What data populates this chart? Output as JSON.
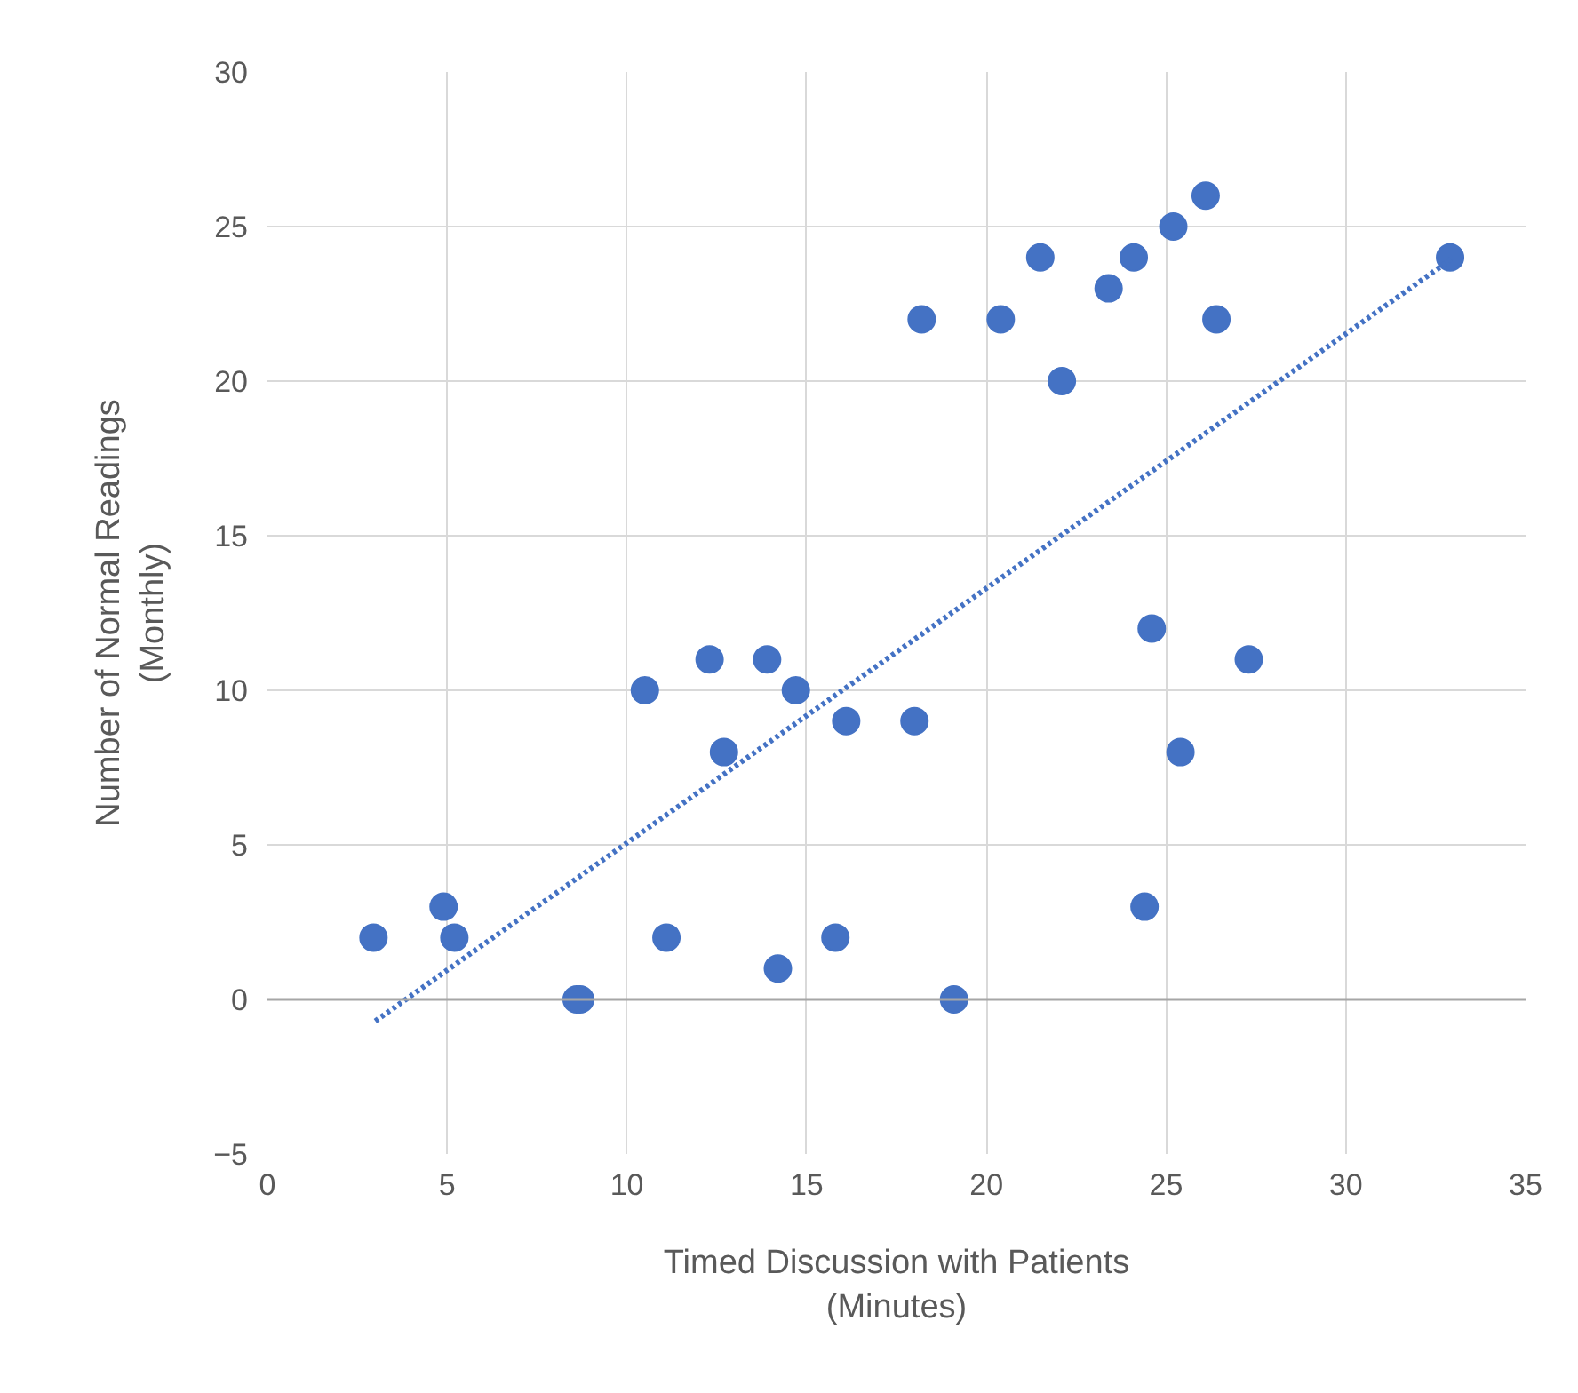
{
  "chart_data": {
    "type": "scatter",
    "xlabel": "Timed Discussion with Patients\n(Minutes)",
    "ylabel": "Number of Normal Readings\n(Monthly)",
    "xlim": [
      0,
      35
    ],
    "ylim": [
      -5,
      30
    ],
    "xticks": [
      0,
      5,
      10,
      15,
      20,
      25,
      30,
      35
    ],
    "yticks": [
      -5,
      0,
      5,
      10,
      15,
      20,
      25,
      30
    ],
    "grid": true,
    "marker": "circle",
    "series": [
      {
        "color": "#4472c4",
        "x": [
          2.95,
          4.9,
          5.2,
          8.6,
          8.7,
          10.5,
          11.1,
          12.3,
          12.7,
          13.9,
          14.2,
          14.7,
          15.8,
          16.1,
          18.0,
          18.2,
          19.1,
          20.4,
          21.5,
          22.1,
          23.4,
          24.1,
          24.4,
          24.6,
          25.2,
          25.4,
          26.1,
          26.4,
          27.3,
          32.9
        ],
        "values": [
          2,
          3,
          2,
          0,
          0,
          10,
          2,
          11,
          8,
          11,
          1,
          10,
          2,
          9,
          9,
          22,
          0,
          22,
          24,
          20,
          23,
          24,
          3,
          12,
          25,
          8,
          26,
          22,
          11,
          24
        ]
      },
      {
        "type": "line",
        "color": "#4472c4",
        "line_style": "dotted",
        "marker": "none",
        "x": [
          3,
          33
        ],
        "values": [
          -0.7,
          24
        ]
      }
    ]
  }
}
